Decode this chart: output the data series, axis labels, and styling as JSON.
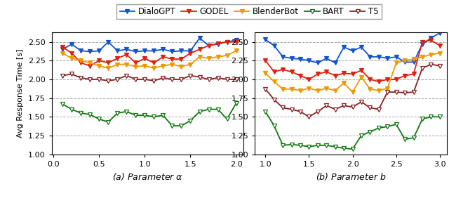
{
  "panel_a": {
    "x": [
      0.1,
      0.2,
      0.3,
      0.4,
      0.5,
      0.6,
      0.7,
      0.8,
      0.9,
      1.0,
      1.1,
      1.2,
      1.3,
      1.4,
      1.5,
      1.6,
      1.7,
      1.8,
      1.9,
      2.0
    ],
    "DialoGPT": [
      2.4,
      2.47,
      2.38,
      2.37,
      2.38,
      2.5,
      2.38,
      2.4,
      2.37,
      2.38,
      2.38,
      2.4,
      2.37,
      2.38,
      2.38,
      2.55,
      2.45,
      2.47,
      2.5,
      2.52
    ],
    "GODEL": [
      2.43,
      2.35,
      2.22,
      2.18,
      2.25,
      2.22,
      2.28,
      2.33,
      2.22,
      2.28,
      2.22,
      2.3,
      2.27,
      2.27,
      2.35,
      2.4,
      2.45,
      2.48,
      2.5,
      2.5
    ],
    "BlenderBot": [
      2.35,
      2.28,
      2.25,
      2.22,
      2.18,
      2.15,
      2.2,
      2.2,
      2.17,
      2.18,
      2.15,
      2.18,
      2.2,
      2.17,
      2.2,
      2.3,
      2.28,
      2.3,
      2.32,
      2.38
    ],
    "BART": [
      1.67,
      1.6,
      1.55,
      1.53,
      1.47,
      1.43,
      1.55,
      1.57,
      1.52,
      1.52,
      1.5,
      1.52,
      1.38,
      1.38,
      1.45,
      1.57,
      1.6,
      1.6,
      1.47,
      1.68
    ],
    "T5": [
      2.05,
      2.07,
      2.02,
      2.0,
      2.0,
      1.98,
      2.0,
      2.05,
      2.0,
      2.0,
      1.98,
      2.02,
      2.0,
      2.0,
      2.05,
      2.03,
      2.0,
      2.02,
      2.0,
      2.0
    ]
  },
  "panel_b": {
    "x": [
      1.0,
      1.1,
      1.2,
      1.3,
      1.4,
      1.5,
      1.6,
      1.7,
      1.8,
      1.9,
      2.0,
      2.1,
      2.2,
      2.3,
      2.4,
      2.5,
      2.6,
      2.7,
      2.8,
      2.9,
      3.0
    ],
    "DialoGPT": [
      2.53,
      2.45,
      2.3,
      2.28,
      2.27,
      2.25,
      2.22,
      2.28,
      2.22,
      2.43,
      2.38,
      2.43,
      2.3,
      2.3,
      2.28,
      2.3,
      2.23,
      2.23,
      2.47,
      2.55,
      2.62
    ],
    "GODEL": [
      2.25,
      2.1,
      2.13,
      2.1,
      2.05,
      2.0,
      2.07,
      2.1,
      2.05,
      2.08,
      2.07,
      2.12,
      2.0,
      1.97,
      2.0,
      2.0,
      2.05,
      2.07,
      2.5,
      2.52,
      2.45
    ],
    "BlenderBot": [
      2.08,
      1.97,
      1.87,
      1.87,
      1.85,
      1.88,
      1.85,
      1.88,
      1.85,
      1.95,
      1.83,
      2.03,
      1.87,
      1.85,
      1.88,
      2.22,
      2.25,
      2.27,
      2.3,
      2.33,
      2.35
    ],
    "BART": [
      1.57,
      1.38,
      1.12,
      1.13,
      1.12,
      1.1,
      1.12,
      1.12,
      1.1,
      1.08,
      1.07,
      1.25,
      1.3,
      1.35,
      1.37,
      1.4,
      1.2,
      1.22,
      1.47,
      1.5,
      1.5
    ],
    "T5": [
      1.87,
      1.73,
      1.62,
      1.6,
      1.57,
      1.5,
      1.57,
      1.65,
      1.6,
      1.65,
      1.63,
      1.7,
      1.62,
      1.6,
      1.83,
      1.83,
      1.82,
      1.83,
      2.15,
      2.2,
      2.18
    ]
  },
  "colors": {
    "DialoGPT": "#1155cc",
    "GODEL": "#dd2211",
    "BlenderBot": "#ee9900",
    "BART": "#117711",
    "T5": "#882222"
  },
  "filled": {
    "DialoGPT": true,
    "GODEL": true,
    "BlenderBot": true,
    "BART": false,
    "T5": false
  },
  "ylabel": "Avg Response Time [s]",
  "xlabel_a": "(a) Parameter $\\alpha$",
  "xlabel_b": "(b) Parameter $b$",
  "ylim": [
    1.0,
    2.625
  ],
  "yticks": [
    1.0,
    1.25,
    1.5,
    1.75,
    2.0,
    2.25,
    2.5
  ],
  "ytick_labels": [
    "1.00",
    "1.25",
    "1.50",
    "1.75",
    "2.00",
    "2.25",
    "2.50"
  ],
  "xticks_a": [
    0.0,
    0.5,
    1.0,
    1.5,
    2.0
  ],
  "xtick_labels_a": [
    "0.0",
    "0.5",
    "1.0",
    "1.5",
    "2.0"
  ],
  "xticks_b": [
    1.0,
    1.5,
    2.0,
    2.5,
    3.0
  ],
  "xtick_labels_b": [
    "1.0",
    "1.5",
    "2.0",
    "2.5",
    "3.0"
  ],
  "legend_order": [
    "DialoGPT",
    "GODEL",
    "BlenderBot",
    "BART",
    "T5"
  ],
  "marker": "v",
  "markersize": 4.5,
  "linewidth": 1.3
}
